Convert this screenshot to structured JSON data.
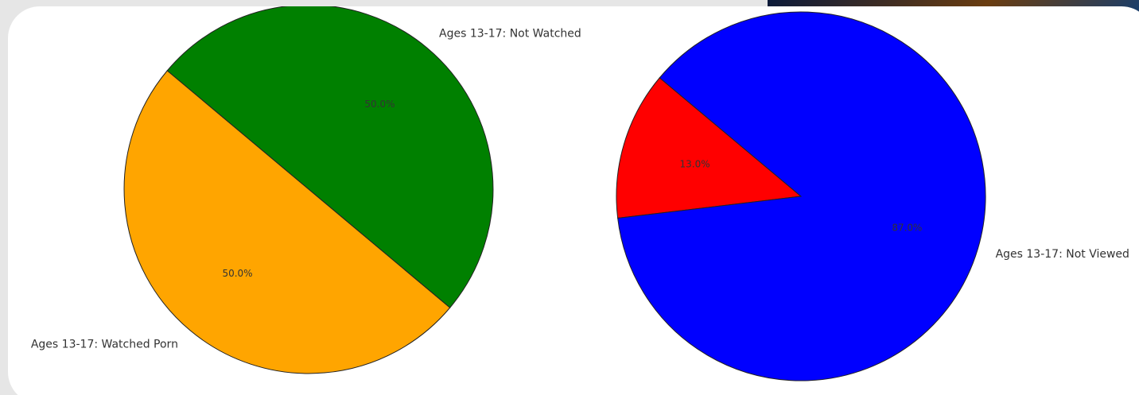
{
  "chart_data": [
    {
      "type": "pie",
      "categories": [
        "Ages 13-17: Watched Porn",
        "Ages 13-17: Not Watched"
      ],
      "values": [
        50,
        50
      ],
      "value_labels": [
        "50.0%",
        "50.0%"
      ],
      "colors": [
        "#ffa500",
        "#008000"
      ],
      "startangle": 140
    },
    {
      "type": "pie",
      "categories": [
        null,
        "Ages 13-17: Not Viewed"
      ],
      "values": [
        13,
        87
      ],
      "value_labels": [
        "13.0%",
        "87.0%"
      ],
      "colors": [
        "#ff0000",
        "#0000ff"
      ],
      "startangle": 140
    }
  ]
}
